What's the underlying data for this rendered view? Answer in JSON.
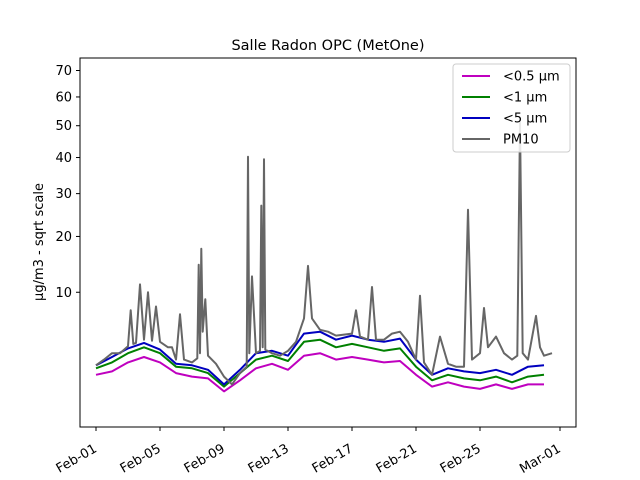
{
  "chart_data": {
    "type": "line",
    "title": "Salle Radon OPC (MetOne)",
    "ylabel": "µg/m3 - sqrt scale",
    "xlabel": "",
    "yscale": "sqrt",
    "ylim": [
      0,
      75
    ],
    "xlim": [
      "2020-01-31T00:00",
      "2020-03-02T00:00"
    ],
    "yticks": [
      10,
      20,
      30,
      40,
      50,
      60,
      70
    ],
    "xticks": [
      "Feb-01",
      "Feb-05",
      "Feb-09",
      "Feb-13",
      "Feb-17",
      "Feb-21",
      "Feb-25",
      "Mar-01"
    ],
    "xtick_dates": [
      "2020-02-01",
      "2020-02-05",
      "2020-02-09",
      "2020-02-13",
      "2020-02-17",
      "2020-02-21",
      "2020-02-25",
      "2020-03-01"
    ],
    "legend_position": "top-right",
    "series": [
      {
        "name": "<0.5 µm",
        "color": "#bf00bf",
        "points": [
          [
            "2020-02-01T00:00",
            1.5
          ],
          [
            "2020-02-02T00:00",
            1.7
          ],
          [
            "2020-02-03T00:00",
            2.3
          ],
          [
            "2020-02-04T00:00",
            2.7
          ],
          [
            "2020-02-05T00:00",
            2.3
          ],
          [
            "2020-02-06T00:00",
            1.6
          ],
          [
            "2020-02-07T00:00",
            1.4
          ],
          [
            "2020-02-08T00:00",
            1.3
          ],
          [
            "2020-02-09T00:00",
            0.7
          ],
          [
            "2020-02-10T00:00",
            1.2
          ],
          [
            "2020-02-11T00:00",
            1.9
          ],
          [
            "2020-02-12T00:00",
            2.2
          ],
          [
            "2020-02-13T00:00",
            1.8
          ],
          [
            "2020-02-14T00:00",
            2.8
          ],
          [
            "2020-02-15T00:00",
            3.0
          ],
          [
            "2020-02-16T00:00",
            2.5
          ],
          [
            "2020-02-17T00:00",
            2.7
          ],
          [
            "2020-02-18T00:00",
            2.5
          ],
          [
            "2020-02-19T00:00",
            2.3
          ],
          [
            "2020-02-20T00:00",
            2.4
          ],
          [
            "2020-02-21T00:00",
            1.5
          ],
          [
            "2020-02-22T00:00",
            0.9
          ],
          [
            "2020-02-23T00:00",
            1.1
          ],
          [
            "2020-02-24T00:00",
            0.9
          ],
          [
            "2020-02-25T00:00",
            0.8
          ],
          [
            "2020-02-26T00:00",
            1.0
          ],
          [
            "2020-02-27T00:00",
            0.8
          ],
          [
            "2020-02-28T00:00",
            1.0
          ],
          [
            "2020-02-29T00:00",
            1.0
          ]
        ]
      },
      {
        "name": "<1 µm",
        "color": "#008000",
        "points": [
          [
            "2020-02-01T00:00",
            1.9
          ],
          [
            "2020-02-02T00:00",
            2.3
          ],
          [
            "2020-02-03T00:00",
            3.0
          ],
          [
            "2020-02-04T00:00",
            3.5
          ],
          [
            "2020-02-05T00:00",
            3.0
          ],
          [
            "2020-02-06T00:00",
            2.0
          ],
          [
            "2020-02-07T00:00",
            1.9
          ],
          [
            "2020-02-08T00:00",
            1.6
          ],
          [
            "2020-02-09T00:00",
            0.9
          ],
          [
            "2020-02-10T00:00",
            1.6
          ],
          [
            "2020-02-11T00:00",
            2.5
          ],
          [
            "2020-02-12T00:00",
            2.8
          ],
          [
            "2020-02-13T00:00",
            2.4
          ],
          [
            "2020-02-14T00:00",
            4.0
          ],
          [
            "2020-02-15T00:00",
            4.2
          ],
          [
            "2020-02-16T00:00",
            3.5
          ],
          [
            "2020-02-17T00:00",
            3.8
          ],
          [
            "2020-02-18T00:00",
            3.5
          ],
          [
            "2020-02-19T00:00",
            3.2
          ],
          [
            "2020-02-20T00:00",
            3.4
          ],
          [
            "2020-02-21T00:00",
            2.0
          ],
          [
            "2020-02-22T00:00",
            1.2
          ],
          [
            "2020-02-23T00:00",
            1.5
          ],
          [
            "2020-02-24T00:00",
            1.3
          ],
          [
            "2020-02-25T00:00",
            1.2
          ],
          [
            "2020-02-26T00:00",
            1.4
          ],
          [
            "2020-02-27T00:00",
            1.1
          ],
          [
            "2020-02-28T00:00",
            1.4
          ],
          [
            "2020-02-29T00:00",
            1.5
          ]
        ]
      },
      {
        "name": "<5 µm",
        "color": "#0000bf",
        "points": [
          [
            "2020-02-01T00:00",
            2.1
          ],
          [
            "2020-02-02T00:00",
            2.7
          ],
          [
            "2020-02-03T00:00",
            3.4
          ],
          [
            "2020-02-04T00:00",
            3.9
          ],
          [
            "2020-02-05T00:00",
            3.3
          ],
          [
            "2020-02-06T00:00",
            2.2
          ],
          [
            "2020-02-07T00:00",
            2.1
          ],
          [
            "2020-02-08T00:00",
            1.8
          ],
          [
            "2020-02-09T00:00",
            1.0
          ],
          [
            "2020-02-10T00:00",
            1.8
          ],
          [
            "2020-02-11T00:00",
            3.0
          ],
          [
            "2020-02-12T00:00",
            3.2
          ],
          [
            "2020-02-13T00:00",
            2.8
          ],
          [
            "2020-02-14T00:00",
            4.8
          ],
          [
            "2020-02-15T00:00",
            5.0
          ],
          [
            "2020-02-16T00:00",
            4.2
          ],
          [
            "2020-02-17T00:00",
            4.6
          ],
          [
            "2020-02-18T00:00",
            4.2
          ],
          [
            "2020-02-19T00:00",
            4.0
          ],
          [
            "2020-02-20T00:00",
            4.3
          ],
          [
            "2020-02-21T00:00",
            2.5
          ],
          [
            "2020-02-22T00:00",
            1.5
          ],
          [
            "2020-02-23T00:00",
            1.9
          ],
          [
            "2020-02-24T00:00",
            1.7
          ],
          [
            "2020-02-25T00:00",
            1.6
          ],
          [
            "2020-02-26T00:00",
            1.8
          ],
          [
            "2020-02-27T00:00",
            1.5
          ],
          [
            "2020-02-28T00:00",
            2.0
          ],
          [
            "2020-02-29T00:00",
            2.1
          ]
        ]
      },
      {
        "name": "PM10",
        "color": "#666666",
        "points": [
          [
            "2020-02-01T00:00",
            2.1
          ],
          [
            "2020-02-01T12:00",
            2.5
          ],
          [
            "2020-02-02T00:00",
            3.0
          ],
          [
            "2020-02-02T12:00",
            3.0
          ],
          [
            "2020-02-03T00:00",
            3.6
          ],
          [
            "2020-02-03T04:00",
            7.5
          ],
          [
            "2020-02-03T08:00",
            3.8
          ],
          [
            "2020-02-03T12:00",
            3.9
          ],
          [
            "2020-02-03T18:00",
            11.2
          ],
          [
            "2020-02-04T00:00",
            4.2
          ],
          [
            "2020-02-04T06:00",
            10.0
          ],
          [
            "2020-02-04T12:00",
            4.1
          ],
          [
            "2020-02-04T18:00",
            8.0
          ],
          [
            "2020-02-05T00:00",
            4.0
          ],
          [
            "2020-02-05T12:00",
            3.5
          ],
          [
            "2020-02-05T18:00",
            3.5
          ],
          [
            "2020-02-06T00:00",
            2.5
          ],
          [
            "2020-02-06T06:00",
            7.0
          ],
          [
            "2020-02-06T12:00",
            2.5
          ],
          [
            "2020-02-07T00:00",
            2.3
          ],
          [
            "2020-02-07T08:00",
            2.6
          ],
          [
            "2020-02-07T10:00",
            14.5
          ],
          [
            "2020-02-07T12:00",
            3.0
          ],
          [
            "2020-02-07T14:00",
            17.5
          ],
          [
            "2020-02-07T16:00",
            5.0
          ],
          [
            "2020-02-07T20:00",
            9.0
          ],
          [
            "2020-02-08T00:00",
            2.8
          ],
          [
            "2020-02-08T12:00",
            2.2
          ],
          [
            "2020-02-09T00:00",
            1.4
          ],
          [
            "2020-02-09T12:00",
            1.0
          ],
          [
            "2020-02-10T00:00",
            1.6
          ],
          [
            "2020-02-10T10:00",
            2.0
          ],
          [
            "2020-02-10T12:00",
            40.2
          ],
          [
            "2020-02-10T14:00",
            3.0
          ],
          [
            "2020-02-10T18:00",
            12.5
          ],
          [
            "2020-02-11T00:00",
            3.0
          ],
          [
            "2020-02-11T06:00",
            3.2
          ],
          [
            "2020-02-11T08:00",
            27.0
          ],
          [
            "2020-02-11T10:00",
            3.5
          ],
          [
            "2020-02-11T12:00",
            39.5
          ],
          [
            "2020-02-11T14:00",
            3.3
          ],
          [
            "2020-02-12T00:00",
            3.0
          ],
          [
            "2020-02-12T12:00",
            2.8
          ],
          [
            "2020-02-13T00:00",
            3.2
          ],
          [
            "2020-02-13T12:00",
            4.0
          ],
          [
            "2020-02-14T00:00",
            6.5
          ],
          [
            "2020-02-14T06:00",
            14.3
          ],
          [
            "2020-02-14T12:00",
            6.5
          ],
          [
            "2020-02-15T00:00",
            5.2
          ],
          [
            "2020-02-15T12:00",
            5.0
          ],
          [
            "2020-02-16T00:00",
            4.6
          ],
          [
            "2020-02-16T12:00",
            4.7
          ],
          [
            "2020-02-17T00:00",
            4.8
          ],
          [
            "2020-02-17T06:00",
            7.5
          ],
          [
            "2020-02-17T12:00",
            4.5
          ],
          [
            "2020-02-18T00:00",
            4.2
          ],
          [
            "2020-02-18T06:00",
            10.8
          ],
          [
            "2020-02-18T12:00",
            4.2
          ],
          [
            "2020-02-19T00:00",
            4.2
          ],
          [
            "2020-02-19T12:00",
            4.8
          ],
          [
            "2020-02-20T00:00",
            5.0
          ],
          [
            "2020-02-20T12:00",
            4.0
          ],
          [
            "2020-02-21T00:00",
            2.5
          ],
          [
            "2020-02-21T06:00",
            9.5
          ],
          [
            "2020-02-21T12:00",
            2.3
          ],
          [
            "2020-02-22T00:00",
            1.5
          ],
          [
            "2020-02-22T12:00",
            4.5
          ],
          [
            "2020-02-23T00:00",
            2.2
          ],
          [
            "2020-02-23T12:00",
            2.0
          ],
          [
            "2020-02-24T00:00",
            2.0
          ],
          [
            "2020-02-24T06:00",
            26.0
          ],
          [
            "2020-02-24T12:00",
            2.5
          ],
          [
            "2020-02-25T00:00",
            3.0
          ],
          [
            "2020-02-25T06:00",
            7.8
          ],
          [
            "2020-02-25T12:00",
            3.5
          ],
          [
            "2020-02-26T00:00",
            4.5
          ],
          [
            "2020-02-26T12:00",
            3.0
          ],
          [
            "2020-02-27T00:00",
            2.5
          ],
          [
            "2020-02-27T08:00",
            2.8
          ],
          [
            "2020-02-27T12:00",
            51.0
          ],
          [
            "2020-02-27T16:00",
            3.0
          ],
          [
            "2020-02-28T00:00",
            2.5
          ],
          [
            "2020-02-28T12:00",
            6.8
          ],
          [
            "2020-02-28T18:00",
            3.5
          ],
          [
            "2020-02-29T00:00",
            2.8
          ],
          [
            "2020-02-29T12:00",
            3.0
          ]
        ]
      }
    ]
  }
}
